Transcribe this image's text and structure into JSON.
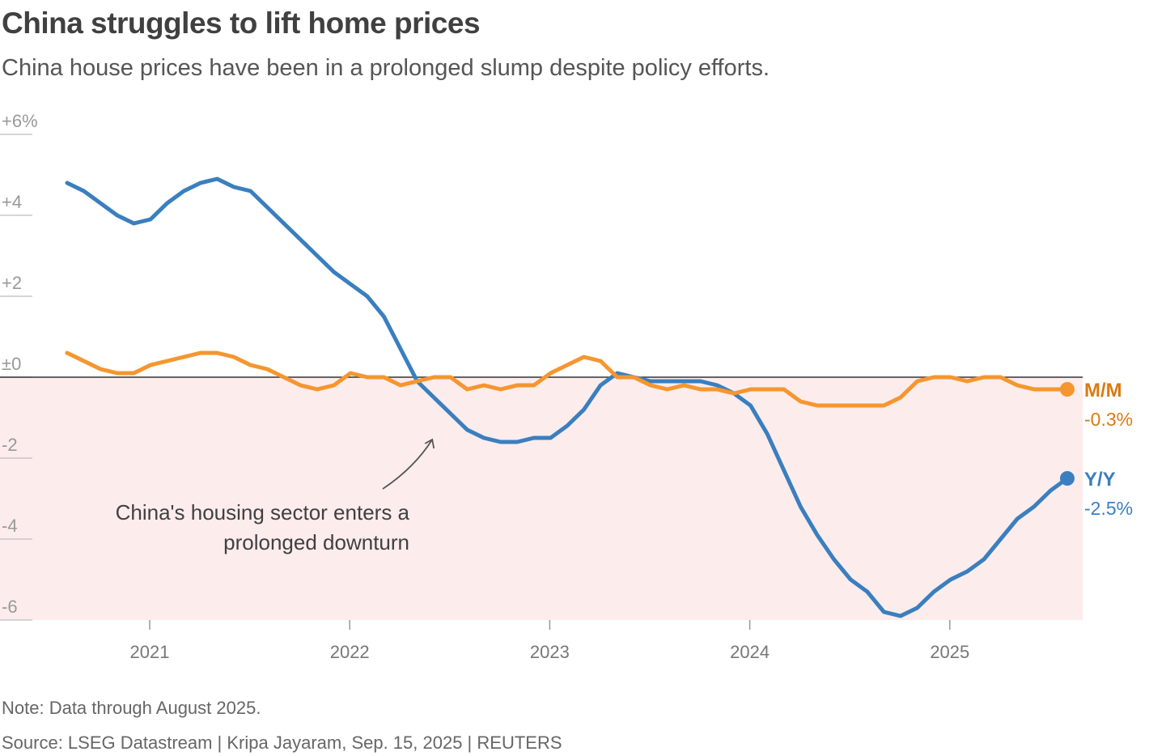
{
  "header": {
    "title": "China struggles to lift home prices",
    "subtitle": "China house prices have been in a prolonged slump despite policy efforts."
  },
  "footer": {
    "note": "Note: Data through August 2025.",
    "source": "Source: LSEG Datastream | Kripa Jayaram, Sep. 15, 2025 | REUTERS"
  },
  "colors": {
    "yy": "#3a7fbf",
    "mm": "#f5962f",
    "mm_label": "#d97a14",
    "negative_fill": "#fdecec",
    "zero_line": "#333333"
  },
  "chart_data": {
    "type": "line",
    "x_start": "2020-08",
    "x_end": "2025-08",
    "x_ticks": [
      {
        "label": "2021",
        "date": "2021-01"
      },
      {
        "label": "2022",
        "date": "2022-01"
      },
      {
        "label": "2023",
        "date": "2023-01"
      },
      {
        "label": "2024",
        "date": "2024-01"
      },
      {
        "label": "2025",
        "date": "2025-01"
      }
    ],
    "ylim": [
      -6,
      6
    ],
    "y_ticks": [
      {
        "label": "+6%",
        "value": 6
      },
      {
        "label": "+4",
        "value": 4
      },
      {
        "label": "+2",
        "value": 2
      },
      {
        "label": "±0",
        "value": 0
      },
      {
        "label": "-2",
        "value": -2
      },
      {
        "label": "-4",
        "value": -4
      },
      {
        "label": "-6",
        "value": -6
      }
    ],
    "series": [
      {
        "name": "Y/Y",
        "end_label": "-2.5%",
        "values": [
          4.8,
          4.6,
          4.3,
          4.0,
          3.8,
          3.9,
          4.3,
          4.6,
          4.8,
          4.9,
          4.7,
          4.6,
          4.2,
          3.8,
          3.4,
          3.0,
          2.6,
          2.3,
          2.0,
          1.5,
          0.7,
          -0.1,
          -0.5,
          -0.9,
          -1.3,
          -1.5,
          -1.6,
          -1.6,
          -1.5,
          -1.5,
          -1.2,
          -0.8,
          -0.2,
          0.1,
          0.0,
          -0.1,
          -0.1,
          -0.1,
          -0.1,
          -0.2,
          -0.4,
          -0.7,
          -1.4,
          -2.3,
          -3.2,
          -3.9,
          -4.5,
          -5.0,
          -5.3,
          -5.8,
          -5.9,
          -5.7,
          -5.3,
          -5.0,
          -4.8,
          -4.5,
          -4.0,
          -3.5,
          -3.2,
          -2.8,
          -2.5
        ],
        "start_date": "2020-08"
      },
      {
        "name": "M/M",
        "end_label": "-0.3%",
        "values": [
          0.6,
          0.4,
          0.2,
          0.1,
          0.1,
          0.3,
          0.4,
          0.5,
          0.6,
          0.6,
          0.5,
          0.3,
          0.2,
          0.0,
          -0.2,
          -0.3,
          -0.2,
          0.1,
          0.0,
          0.0,
          -0.2,
          -0.1,
          0.0,
          0.0,
          -0.3,
          -0.2,
          -0.3,
          -0.2,
          -0.2,
          0.1,
          0.3,
          0.5,
          0.4,
          0.0,
          0.0,
          -0.2,
          -0.3,
          -0.2,
          -0.3,
          -0.3,
          -0.4,
          -0.3,
          -0.3,
          -0.3,
          -0.6,
          -0.7,
          -0.7,
          -0.7,
          -0.7,
          -0.7,
          -0.5,
          -0.1,
          0.0,
          0.0,
          -0.1,
          0.0,
          0.0,
          -0.2,
          -0.3,
          -0.3,
          -0.3
        ],
        "start_date": "2020-08"
      }
    ],
    "annotation": {
      "lines": [
        "China's housing sector enters a",
        "prolonged downturn"
      ],
      "arrow_to_date": "2022-06",
      "arrow_to_value": -1.5
    }
  }
}
